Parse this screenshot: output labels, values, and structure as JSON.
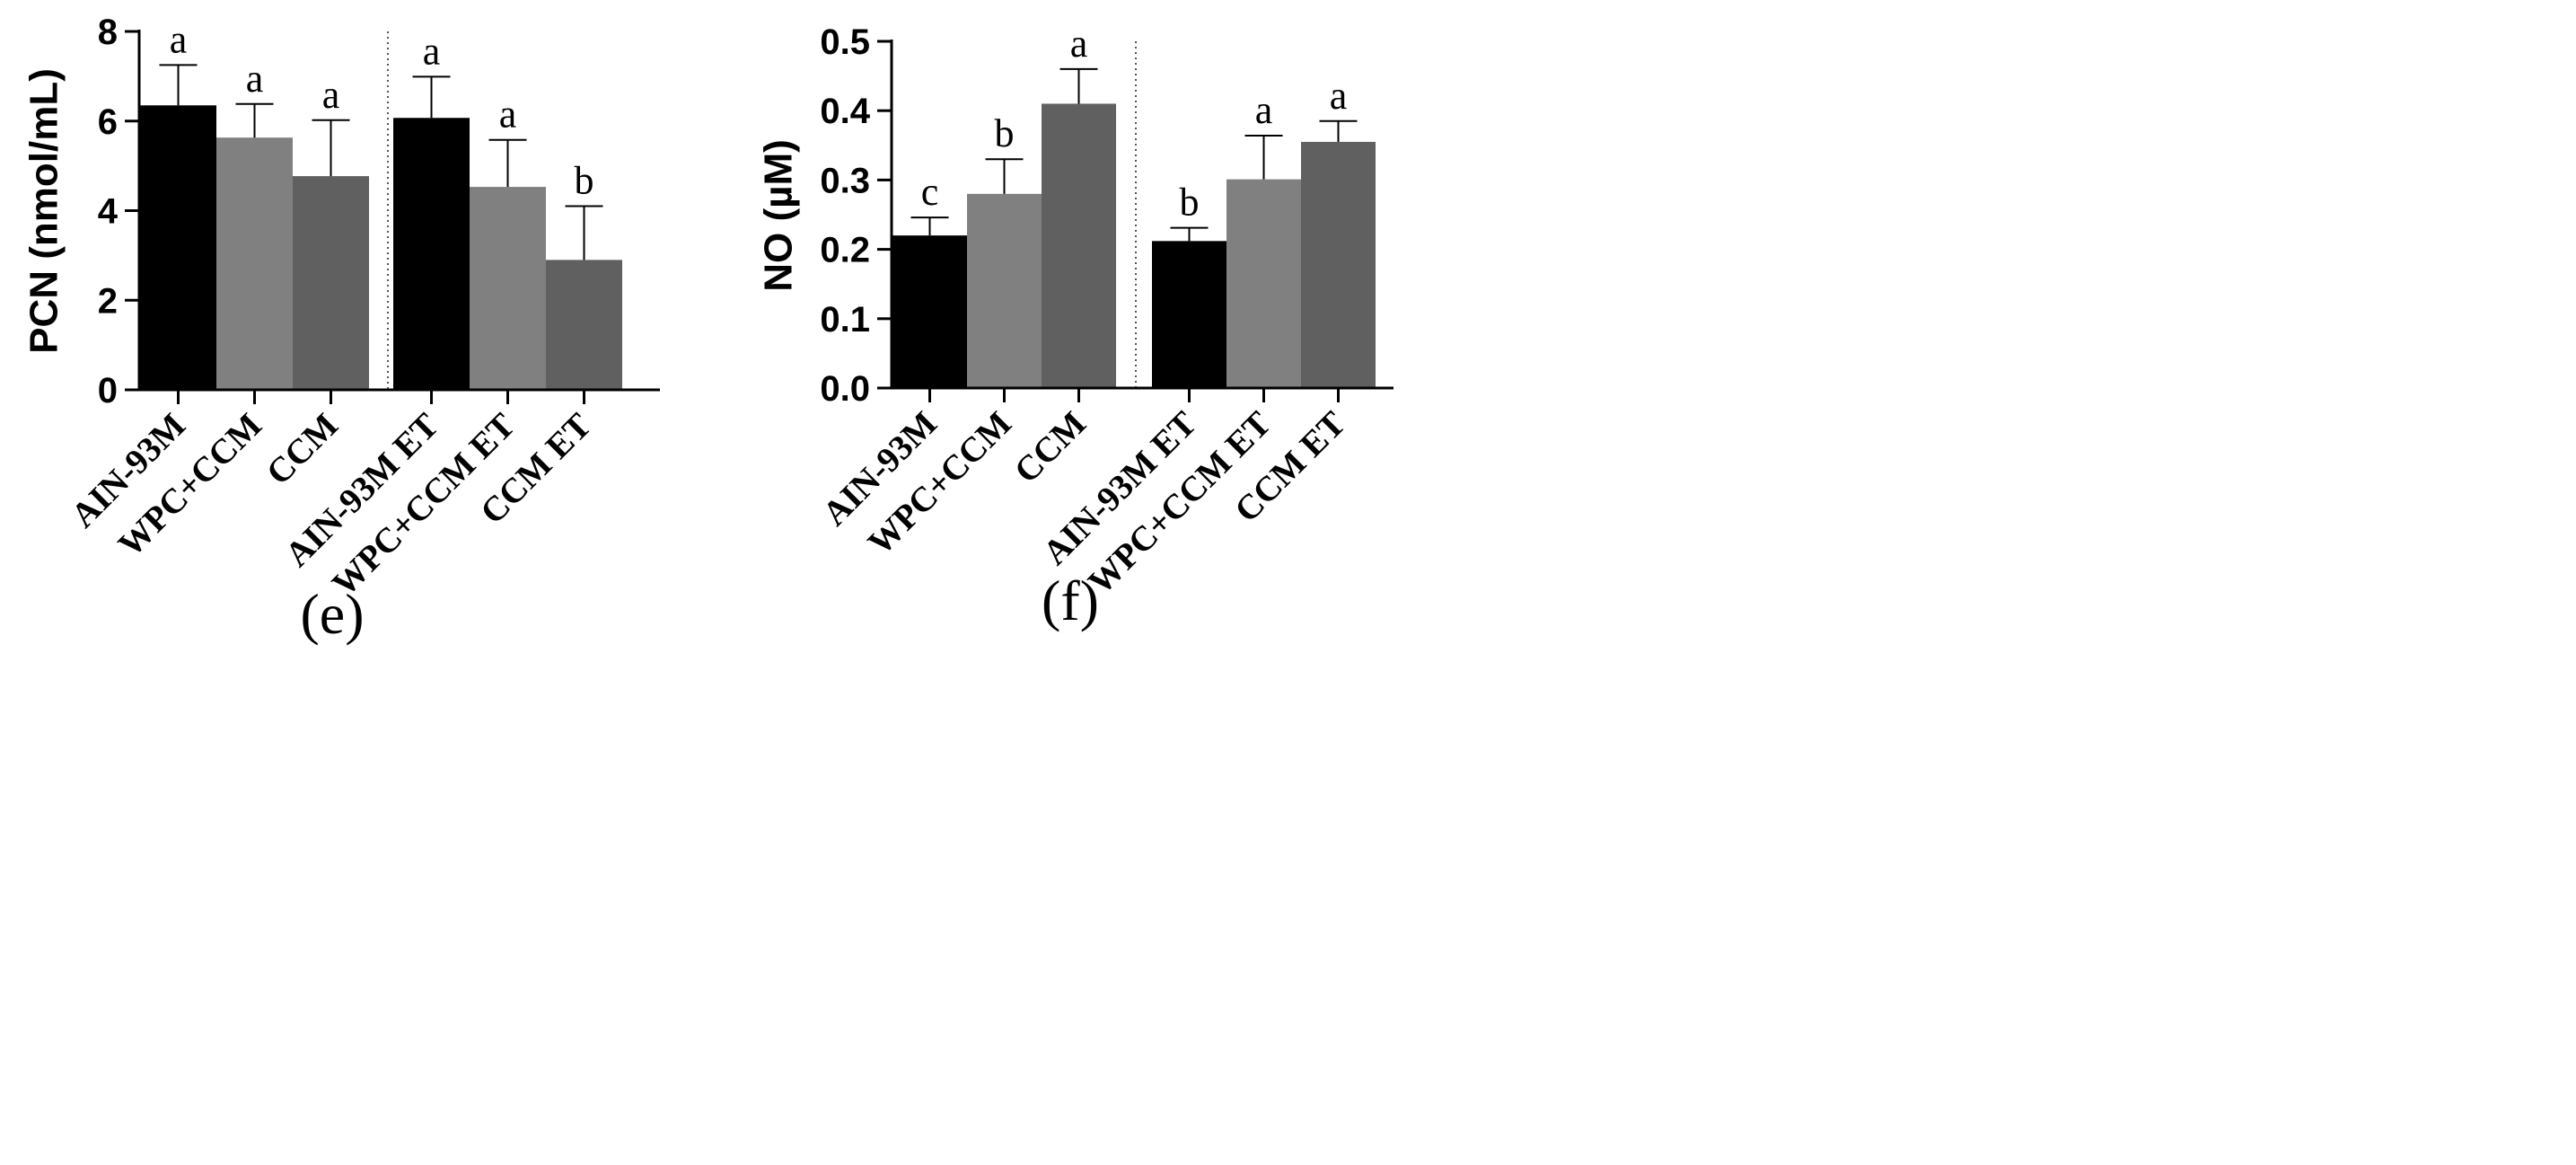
{
  "chart_data": [
    {
      "type": "bar",
      "panel_label": "(e)",
      "ylabel": "PCN (nmol/mL)",
      "xlabel": "",
      "ylim": [
        0,
        8
      ],
      "yticks": [
        0,
        2,
        4,
        6,
        8
      ],
      "ytick_labels": [
        "0",
        "2",
        "4",
        "6",
        "8"
      ],
      "categories": [
        "AIN-93M",
        "WPC+CCM",
        "CCM",
        "AIN-93M ET",
        "WPC+CCM ET",
        "CCM ET"
      ],
      "values": [
        6.35,
        5.63,
        4.77,
        6.07,
        4.53,
        2.9
      ],
      "errors": [
        0.9,
        0.75,
        1.25,
        0.92,
        1.05,
        1.2
      ],
      "error_direction": "up",
      "significance": [
        "a",
        "a",
        "a",
        "a",
        "a",
        "b"
      ],
      "bar_colors": [
        "#000000",
        "#808080",
        "#606060",
        "#000000",
        "#808080",
        "#606060"
      ],
      "separator_after_index": 2
    },
    {
      "type": "bar",
      "panel_label": "(f)",
      "ylabel": "NO (µM)",
      "xlabel": "",
      "ylim": [
        0,
        0.5
      ],
      "yticks": [
        0,
        0.1,
        0.2,
        0.3,
        0.4,
        0.5
      ],
      "ytick_labels": [
        "0.0",
        "0.1",
        "0.2",
        "0.3",
        "0.4",
        "0.5"
      ],
      "categories": [
        "AIN-93M",
        "WPC+CCM",
        "CCM",
        "AIN-93M ET",
        "WPC+CCM ET",
        "CCM ET"
      ],
      "values": [
        0.22,
        0.28,
        0.41,
        0.212,
        0.301,
        0.355
      ],
      "errors": [
        0.026,
        0.05,
        0.05,
        0.019,
        0.063,
        0.03
      ],
      "error_direction": "up",
      "significance": [
        "c",
        "b",
        "a",
        "b",
        "a",
        "a"
      ],
      "bar_colors": [
        "#000000",
        "#808080",
        "#606060",
        "#000000",
        "#808080",
        "#606060"
      ],
      "separator_after_index": 2
    }
  ]
}
